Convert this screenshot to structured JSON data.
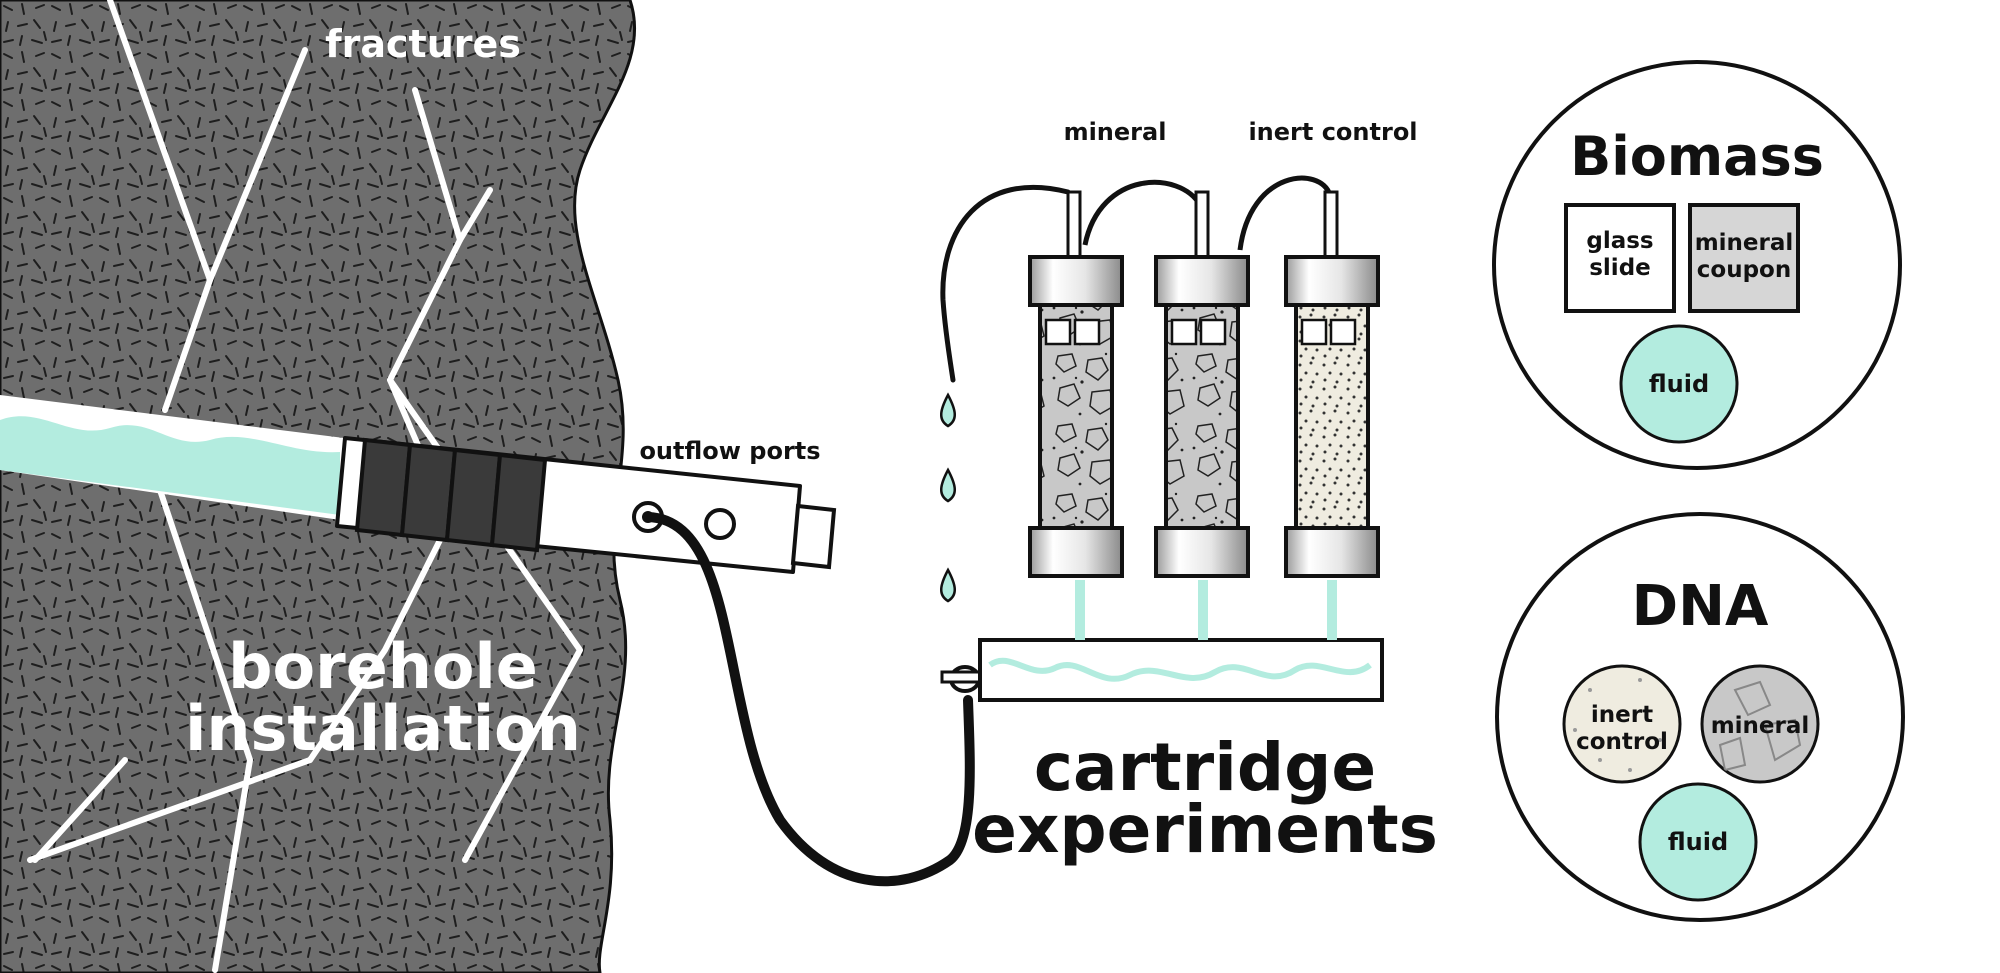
{
  "labels": {
    "fractures": "fractures",
    "borehole_line1": "borehole",
    "borehole_line2": "installation",
    "outflow_ports": "outflow ports",
    "mineral": "mineral",
    "inert_control": "inert control",
    "cartridge_line1": "cartridge",
    "cartridge_line2": "experiments"
  },
  "biomass": {
    "title": "Biomass",
    "glass_slide_line1": "glass",
    "glass_slide_line2": "slide",
    "mineral_coupon_line1": "mineral",
    "mineral_coupon_line2": "coupon",
    "fluid": "fluid"
  },
  "dna": {
    "title": "DNA",
    "inert_line1": "inert",
    "inert_line2": "control",
    "mineral": "mineral",
    "fluid": "fluid"
  },
  "colors": {
    "rock": "#6e6e6e",
    "fluid": "#b3ecdf",
    "inert_fill": "#efece0",
    "mineral_fill": "#c8c8c8",
    "packer": "#3a3a3a"
  }
}
